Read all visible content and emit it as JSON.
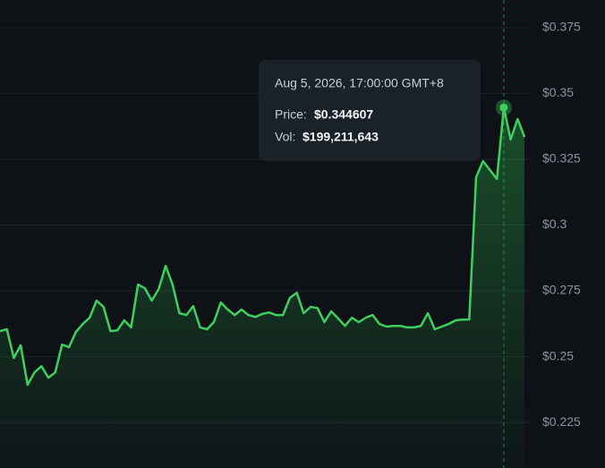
{
  "chart_data": {
    "type": "area",
    "series": [
      {
        "name": "Price",
        "color": "#3fcf5e",
        "values": [
          0.2597,
          0.2604,
          0.2495,
          0.2543,
          0.2393,
          0.244,
          0.2464,
          0.242,
          0.244,
          0.2546,
          0.2536,
          0.2594,
          0.2624,
          0.2648,
          0.2713,
          0.2689,
          0.2597,
          0.26,
          0.2638,
          0.2611,
          0.2774,
          0.276,
          0.2713,
          0.2757,
          0.2845,
          0.2774,
          0.2665,
          0.2658,
          0.2692,
          0.2611,
          0.2604,
          0.2631,
          0.2706,
          0.2679,
          0.2658,
          0.2679,
          0.2658,
          0.2651,
          0.2662,
          0.2668,
          0.2658,
          0.2658,
          0.2723,
          0.2743,
          0.2665,
          0.2689,
          0.2685,
          0.2631,
          0.2672,
          0.2645,
          0.2617,
          0.2648,
          0.2631,
          0.2648,
          0.2658,
          0.2624,
          0.2614,
          0.2617,
          0.2617,
          0.2611,
          0.2611,
          0.2617,
          0.2665,
          0.2604,
          0.2614,
          0.2624,
          0.2638,
          0.2641,
          0.2641,
          0.3182,
          0.3243,
          0.3209,
          0.3175,
          0.344607,
          0.3325,
          0.3403,
          0.3335
        ]
      }
    ],
    "ylim": [
      0.2077,
      0.3855
    ],
    "yticks": [
      {
        "value": 0.225,
        "label": "$0.225"
      },
      {
        "value": 0.25,
        "label": "$0.25"
      },
      {
        "value": 0.275,
        "label": "$0.275"
      },
      {
        "value": 0.3,
        "label": "$0.3"
      },
      {
        "value": 0.325,
        "label": "$0.325"
      },
      {
        "value": 0.35,
        "label": "$0.35"
      },
      {
        "value": 0.375,
        "label": "$0.375"
      }
    ],
    "grid": true,
    "tooltip": {
      "index": 73,
      "date": "Aug 5, 2026, 17:00:00 GMT+8",
      "price_label": "Price:",
      "price": "$0.344607",
      "vol_label": "Vol:",
      "vol": "$199,211,643"
    }
  }
}
